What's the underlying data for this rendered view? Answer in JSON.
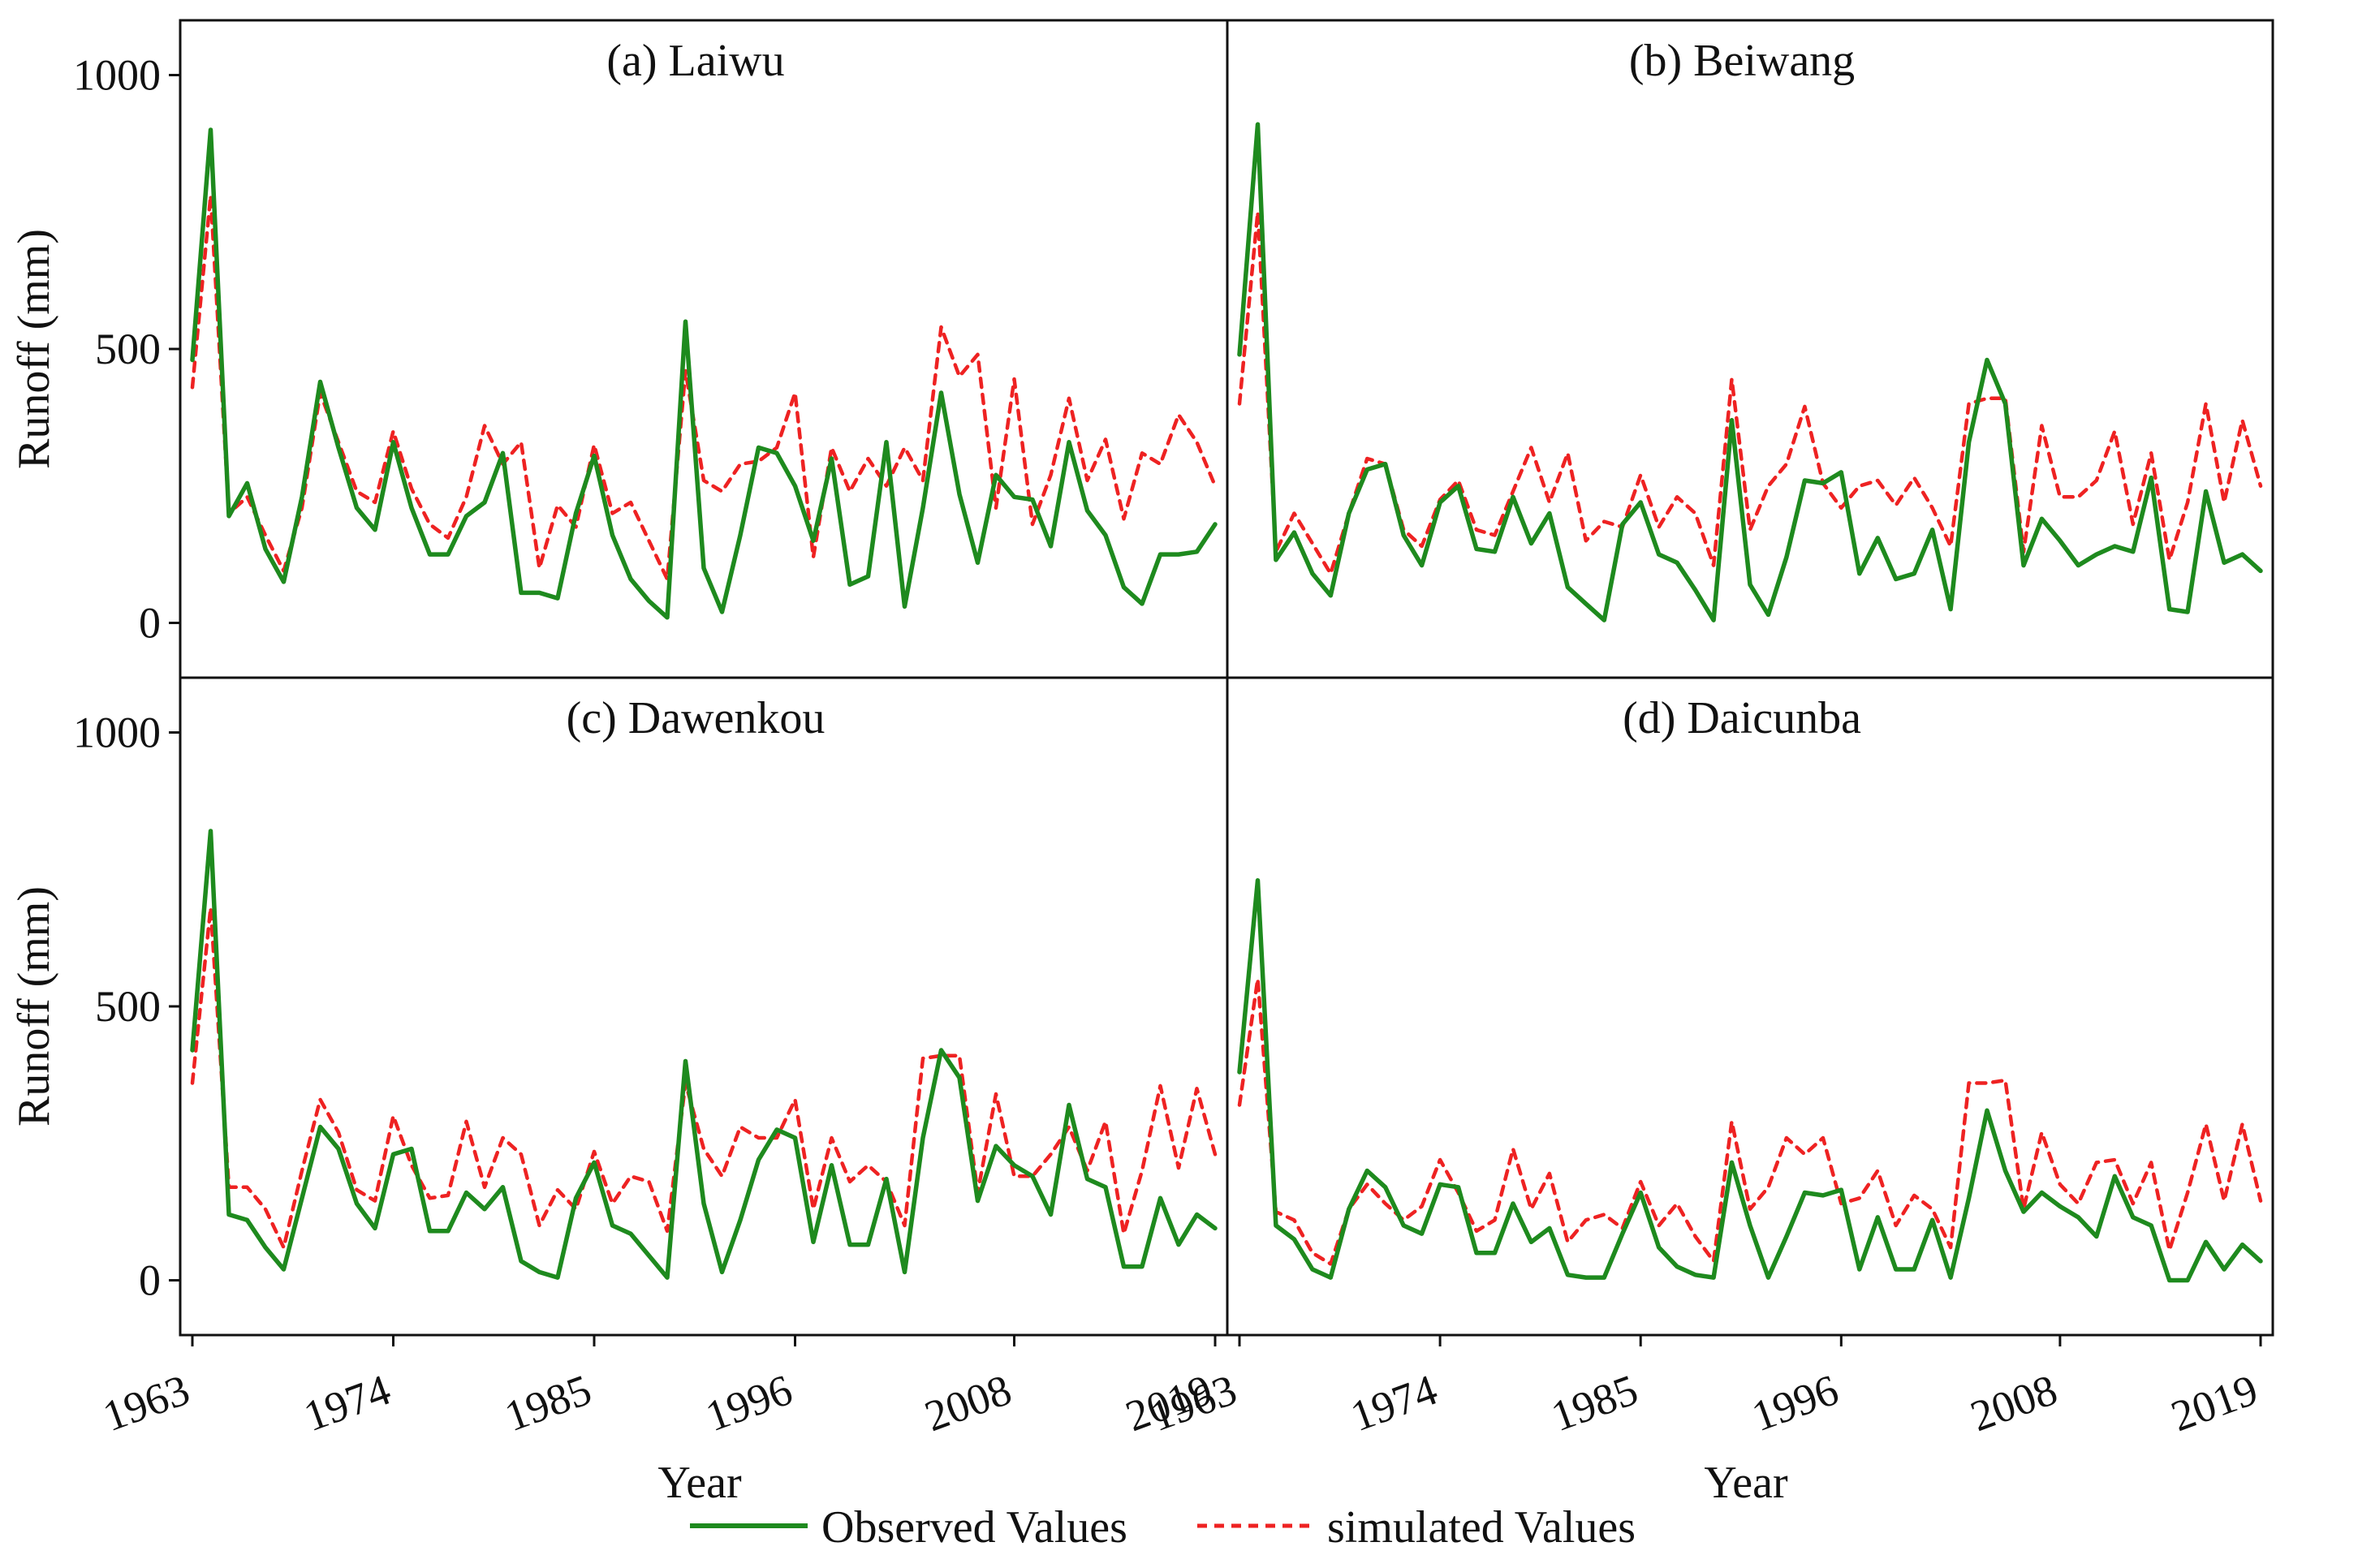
{
  "figure": {
    "ylabel": "Runoff (mm)",
    "xlabel": "Year",
    "colors": {
      "observed": "#1e8a1e",
      "simulated": "#ee2222",
      "axes": "#111111"
    }
  },
  "legend": {
    "observed_label": "Observed Values",
    "simulated_label": "simulated Values",
    "placement": "bottom-center"
  },
  "chart_data": [
    {
      "type": "line",
      "title": "(a) Laiwu",
      "xlabel": "Year",
      "ylabel": "Runoff (mm)",
      "xlim": [
        1963,
        2019
      ],
      "ylim": [
        -100,
        1100
      ],
      "xticks": [
        1963,
        1974,
        1985,
        1996,
        2008,
        2019
      ],
      "yticks": [
        0,
        500,
        1000
      ],
      "x": [
        1963,
        1964,
        1965,
        1966,
        1967,
        1968,
        1969,
        1970,
        1971,
        1972,
        1973,
        1974,
        1975,
        1976,
        1977,
        1978,
        1979,
        1980,
        1981,
        1982,
        1983,
        1984,
        1985,
        1986,
        1987,
        1988,
        1989,
        1990,
        1991,
        1992,
        1993,
        1994,
        1995,
        1996,
        1997,
        1998,
        1999,
        2000,
        2001,
        2002,
        2003,
        2004,
        2005,
        2006,
        2007,
        2008,
        2009,
        2010,
        2011,
        2012,
        2013,
        2014,
        2015,
        2016,
        2017,
        2018,
        2019
      ],
      "series": [
        {
          "name": "Observed Values",
          "values": [
            480,
            900,
            195,
            255,
            135,
            75,
            230,
            440,
            320,
            210,
            170,
            330,
            210,
            125,
            125,
            195,
            220,
            310,
            55,
            55,
            45,
            200,
            305,
            160,
            80,
            40,
            10,
            550,
            100,
            20,
            160,
            320,
            310,
            250,
            150,
            300,
            70,
            85,
            330,
            30,
            210,
            420,
            235,
            110,
            270,
            230,
            225,
            140,
            330,
            205,
            160,
            65,
            35,
            125,
            125,
            130,
            180
          ]
        },
        {
          "name": "simulated Values",
          "values": [
            430,
            780,
            200,
            230,
            160,
            95,
            210,
            420,
            330,
            240,
            220,
            350,
            245,
            180,
            155,
            230,
            360,
            290,
            330,
            100,
            215,
            175,
            325,
            200,
            220,
            150,
            80,
            460,
            260,
            240,
            290,
            295,
            320,
            420,
            120,
            320,
            240,
            300,
            250,
            320,
            260,
            540,
            450,
            490,
            210,
            445,
            180,
            270,
            410,
            260,
            335,
            190,
            310,
            290,
            380,
            330,
            250
          ]
        }
      ]
    },
    {
      "type": "line",
      "title": "(b) Beiwang",
      "xlabel": "Year",
      "ylabel": "Runoff (mm)",
      "xlim": [
        1963,
        2019
      ],
      "ylim": [
        -100,
        1100
      ],
      "xticks": [
        1963,
        1974,
        1985,
        1996,
        2008,
        2019
      ],
      "yticks": [
        0,
        500,
        1000
      ],
      "x": [
        1963,
        1964,
        1965,
        1966,
        1967,
        1968,
        1969,
        1970,
        1971,
        1972,
        1973,
        1974,
        1975,
        1976,
        1977,
        1978,
        1979,
        1980,
        1981,
        1982,
        1983,
        1984,
        1985,
        1986,
        1987,
        1988,
        1989,
        1990,
        1991,
        1992,
        1993,
        1994,
        1995,
        1996,
        1997,
        1998,
        1999,
        2000,
        2001,
        2002,
        2003,
        2004,
        2005,
        2006,
        2007,
        2008,
        2009,
        2010,
        2011,
        2012,
        2013,
        2014,
        2015,
        2016,
        2017,
        2018,
        2019
      ],
      "series": [
        {
          "name": "Observed Values",
          "values": [
            490,
            910,
            115,
            165,
            90,
            50,
            200,
            280,
            290,
            160,
            105,
            220,
            250,
            135,
            130,
            230,
            145,
            200,
            65,
            35,
            5,
            180,
            220,
            125,
            110,
            60,
            5,
            370,
            70,
            15,
            120,
            260,
            255,
            275,
            90,
            155,
            80,
            90,
            170,
            25,
            330,
            480,
            400,
            105,
            190,
            150,
            105,
            125,
            140,
            130,
            265,
            25,
            20,
            240,
            110,
            125,
            95
          ]
        },
        {
          "name": "simulated Values",
          "values": [
            400,
            750,
            130,
            200,
            145,
            90,
            200,
            300,
            290,
            170,
            140,
            225,
            260,
            170,
            160,
            240,
            320,
            220,
            310,
            150,
            185,
            175,
            270,
            175,
            230,
            200,
            105,
            445,
            170,
            250,
            290,
            395,
            255,
            210,
            250,
            260,
            215,
            265,
            210,
            140,
            400,
            410,
            410,
            130,
            360,
            230,
            230,
            260,
            350,
            180,
            310,
            115,
            220,
            400,
            220,
            370,
            250
          ]
        }
      ]
    },
    {
      "type": "line",
      "title": "(c) Dawenkou",
      "xlabel": "Year",
      "ylabel": "Runoff (mm)",
      "xlim": [
        1963,
        2019
      ],
      "ylim": [
        -100,
        1100
      ],
      "xticks": [
        1963,
        1974,
        1985,
        1996,
        2008,
        2019
      ],
      "yticks": [
        0,
        500,
        1000
      ],
      "x": [
        1963,
        1964,
        1965,
        1966,
        1967,
        1968,
        1969,
        1970,
        1971,
        1972,
        1973,
        1974,
        1975,
        1976,
        1977,
        1978,
        1979,
        1980,
        1981,
        1982,
        1983,
        1984,
        1985,
        1986,
        1987,
        1988,
        1989,
        1990,
        1991,
        1992,
        1993,
        1994,
        1995,
        1996,
        1997,
        1998,
        1999,
        2000,
        2001,
        2002,
        2003,
        2004,
        2005,
        2006,
        2007,
        2008,
        2009,
        2010,
        2011,
        2012,
        2013,
        2014,
        2015,
        2016,
        2017,
        2018,
        2019
      ],
      "series": [
        {
          "name": "Observed Values",
          "values": [
            420,
            820,
            120,
            110,
            60,
            20,
            150,
            280,
            240,
            140,
            95,
            230,
            240,
            90,
            90,
            160,
            130,
            170,
            35,
            15,
            5,
            150,
            215,
            100,
            85,
            45,
            5,
            400,
            140,
            15,
            110,
            220,
            275,
            260,
            70,
            210,
            65,
            65,
            185,
            15,
            260,
            420,
            370,
            145,
            245,
            210,
            190,
            120,
            320,
            185,
            170,
            25,
            25,
            150,
            65,
            120,
            95
          ]
        },
        {
          "name": "simulated Values",
          "values": [
            360,
            680,
            170,
            170,
            130,
            60,
            200,
            330,
            270,
            165,
            145,
            300,
            210,
            150,
            155,
            290,
            170,
            260,
            230,
            100,
            165,
            130,
            235,
            140,
            190,
            180,
            90,
            360,
            240,
            190,
            280,
            260,
            260,
            330,
            130,
            260,
            180,
            210,
            180,
            100,
            405,
            410,
            410,
            160,
            340,
            190,
            190,
            230,
            280,
            200,
            290,
            85,
            200,
            355,
            205,
            350,
            230
          ]
        }
      ]
    },
    {
      "type": "line",
      "title": "(d) Daicunba",
      "xlabel": "Year",
      "ylabel": "Runoff (mm)",
      "xlim": [
        1963,
        2019
      ],
      "ylim": [
        -100,
        1100
      ],
      "xticks": [
        1963,
        1974,
        1985,
        1996,
        2008,
        2019
      ],
      "yticks": [
        0,
        500,
        1000
      ],
      "x": [
        1963,
        1964,
        1965,
        1966,
        1967,
        1968,
        1969,
        1970,
        1971,
        1972,
        1973,
        1974,
        1975,
        1976,
        1977,
        1978,
        1979,
        1980,
        1981,
        1982,
        1983,
        1984,
        1985,
        1986,
        1987,
        1988,
        1989,
        1990,
        1991,
        1992,
        1993,
        1994,
        1995,
        1996,
        1997,
        1998,
        1999,
        2000,
        2001,
        2002,
        2003,
        2004,
        2005,
        2006,
        2007,
        2008,
        2009,
        2010,
        2011,
        2012,
        2013,
        2014,
        2015,
        2016,
        2017,
        2018,
        2019
      ],
      "series": [
        {
          "name": "Observed Values",
          "values": [
            380,
            730,
            100,
            75,
            20,
            5,
            130,
            200,
            170,
            100,
            85,
            175,
            170,
            50,
            50,
            140,
            70,
            95,
            10,
            5,
            5,
            85,
            160,
            60,
            25,
            10,
            5,
            215,
            100,
            5,
            80,
            160,
            155,
            165,
            20,
            115,
            20,
            20,
            110,
            5,
            150,
            310,
            200,
            125,
            160,
            135,
            115,
            80,
            190,
            115,
            100,
            0,
            0,
            70,
            20,
            65,
            35
          ]
        },
        {
          "name": "simulated Values",
          "values": [
            320,
            550,
            125,
            110,
            50,
            30,
            130,
            175,
            140,
            110,
            135,
            220,
            160,
            90,
            110,
            240,
            130,
            195,
            70,
            110,
            120,
            95,
            180,
            100,
            140,
            80,
            35,
            290,
            130,
            170,
            260,
            230,
            260,
            140,
            150,
            200,
            100,
            155,
            130,
            60,
            360,
            360,
            365,
            130,
            270,
            175,
            140,
            215,
            220,
            140,
            215,
            55,
            160,
            285,
            145,
            285,
            145
          ]
        }
      ]
    }
  ]
}
